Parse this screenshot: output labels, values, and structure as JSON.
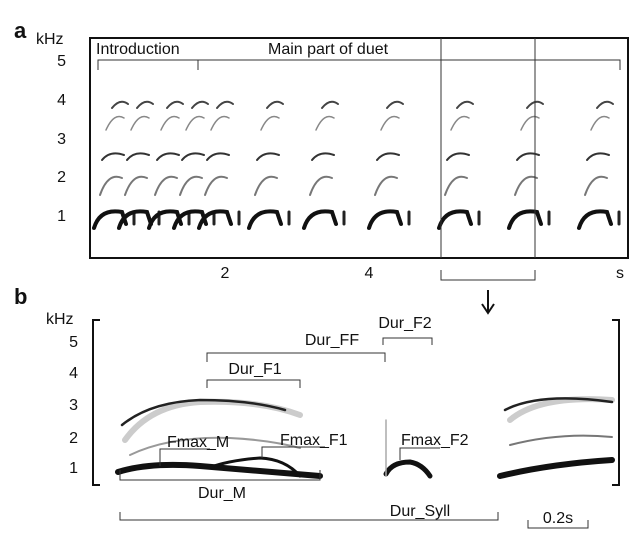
{
  "panel_a": {
    "label": "a",
    "y_unit": "kHz",
    "y_ticks": [
      "5",
      "4",
      "3",
      "2",
      "1"
    ],
    "x_ticks": [
      "2",
      "4"
    ],
    "x_unit": "s",
    "annotations": [
      "Introduction",
      "Main part of duet"
    ]
  },
  "panel_b": {
    "label": "b",
    "y_unit": "kHz",
    "y_ticks": [
      "5",
      "4",
      "3",
      "2",
      "1"
    ],
    "annotations": [
      "Dur_FF",
      "Dur_F2",
      "Dur_F1",
      "Fmax_M",
      "Fmax_F1",
      "Fmax_F2",
      "Dur_M",
      "Dur_Syll"
    ],
    "scale_bar": "0.2s"
  }
}
